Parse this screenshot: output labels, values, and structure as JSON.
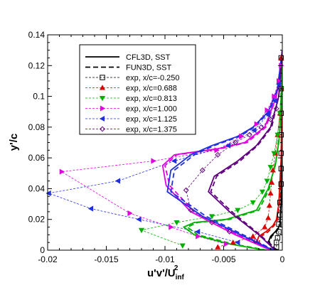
{
  "chart_data": {
    "type": "line",
    "xlim": [
      -0.02,
      0
    ],
    "ylim": [
      0,
      0.14
    ],
    "xticks": [
      -0.02,
      -0.015,
      -0.01,
      -0.005,
      0
    ],
    "xtick_labels": [
      "-0.02",
      "-0.015",
      "-0.01",
      "-0.005",
      "0"
    ],
    "yticks": [
      0,
      0.02,
      0.04,
      0.06,
      0.08,
      0.1,
      0.12,
      0.14
    ],
    "ytick_labels": [
      "0",
      "0.02",
      "0.04",
      "0.06",
      "0.08",
      "0.1",
      "0.12",
      "0.14"
    ],
    "xlabel": "u'v'/U",
    "xlabel_sub": "inf",
    "xlabel_sup": "2",
    "ylabel": "y'/c",
    "legend_position": "upper-left",
    "series": [
      {
        "name": "CFL3D, SST",
        "style": "solid",
        "color": "#000000",
        "group": "cfd",
        "x": [
          -0.0005,
          -0.0009,
          -0.0012,
          -0.001,
          -0.0006,
          -0.0002,
          -0.0001,
          0
        ],
        "y": [
          0,
          0.002,
          0.005,
          0.009,
          0.012,
          0.016,
          0.03,
          0.13
        ]
      },
      {
        "name": "FUN3D, SST",
        "style": "dashed",
        "color": "#000000",
        "group": "cfd",
        "x": [
          -0.0004,
          -0.0008,
          -0.0011,
          -0.0009,
          -0.0005,
          -0.0002,
          -0.0001,
          0
        ],
        "y": [
          0,
          0.002,
          0.005,
          0.009,
          0.012,
          0.016,
          0.03,
          0.13
        ]
      },
      {
        "name": "exp, x/c=-0.250",
        "style": "dotted",
        "color": "#000000",
        "marker": "square",
        "group": "exp",
        "x": [
          -0.0005,
          -0.0005,
          -0.0004,
          -0.0003,
          -0.0003,
          -0.0002,
          -0.0002,
          -0.0001,
          -0.0001,
          -0.0001,
          -0.0001,
          -0.0001,
          -0.0001,
          -0.0001
        ],
        "y": [
          0.002,
          0.005,
          0.008,
          0.012,
          0.017,
          0.023,
          0.031,
          0.043,
          0.053,
          0.063,
          0.075,
          0.089,
          0.105,
          0.125
        ]
      },
      {
        "name": "exp, x/c=0.688",
        "style": "dotted",
        "color": "#e00000",
        "marker": "triangle-up",
        "group": "exp",
        "x": [
          -0.0055,
          -0.0042,
          -0.0025,
          -0.0015,
          -0.0012,
          -0.0011,
          -0.001,
          -0.0009,
          -0.0008,
          -0.0006,
          -0.0004,
          -0.0002,
          -0.0001,
          -0.0001
        ],
        "y": [
          0.002,
          0.005,
          0.009,
          0.015,
          0.021,
          0.029,
          0.037,
          0.044,
          0.052,
          0.063,
          0.075,
          0.089,
          0.105,
          0.125
        ]
      },
      {
        "name": "exp, x/c=0.813",
        "style": "dotted",
        "color": "#00b000",
        "marker": "triangle-down",
        "group": "exp",
        "x": [
          -0.0085,
          -0.012,
          -0.009,
          -0.006,
          -0.0038,
          -0.0025,
          -0.0017,
          -0.0013,
          -0.001,
          -0.0007,
          -0.0004,
          -0.0002,
          -0.0001
        ],
        "y": [
          0.003,
          0.013,
          0.018,
          0.022,
          0.026,
          0.031,
          0.038,
          0.045,
          0.054,
          0.063,
          0.075,
          0.089,
          0.105
        ]
      },
      {
        "name": "exp, x/c=1.000",
        "style": "dotted",
        "color": "#e000e0",
        "marker": "triangle-right",
        "group": "exp",
        "x": [
          -0.0048,
          -0.0072,
          -0.0095,
          -0.013,
          -0.0188,
          -0.011,
          -0.0056,
          -0.0035,
          -0.0022,
          -0.0013,
          -0.0007,
          -0.0003,
          -0.0001
        ],
        "y": [
          0.004,
          0.009,
          0.015,
          0.024,
          0.051,
          0.058,
          0.065,
          0.074,
          0.082,
          0.091,
          0.1,
          0.11,
          0.12
        ]
      },
      {
        "name": "exp, x/c=1.125",
        "style": "dotted",
        "color": "#2030e0",
        "marker": "triangle-left",
        "group": "exp",
        "x": [
          -0.0038,
          -0.0072,
          -0.0122,
          -0.0163,
          -0.0199,
          -0.014,
          -0.0092,
          -0.0046,
          -0.0024,
          -0.0012,
          -0.0006,
          -0.0003
        ],
        "y": [
          0.005,
          0.012,
          0.02,
          0.027,
          0.037,
          0.045,
          0.058,
          0.068,
          0.078,
          0.088,
          0.097,
          0.108
        ]
      },
      {
        "name": "exp, x/c=1.375",
        "style": "dotted",
        "color": "#600080",
        "marker": "diamond",
        "group": "exp",
        "x": [
          -0.0023,
          -0.0045,
          -0.006,
          -0.0078,
          -0.0082,
          -0.0068,
          -0.0055,
          -0.004,
          -0.0028,
          -0.0018,
          -0.001,
          -0.0005,
          -0.0002
        ],
        "y": [
          0.006,
          0.012,
          0.018,
          0.026,
          0.039,
          0.052,
          0.062,
          0.07,
          0.075,
          0.08,
          0.085,
          0.092,
          0.105
        ]
      },
      {
        "name": "",
        "style": "solid",
        "color": "#e00000",
        "group": "cfd",
        "x": [
          -0.0007,
          -0.0016,
          -0.0022,
          -0.002,
          -0.0014,
          -0.0008,
          -0.0005,
          -0.0003,
          -0.0002,
          -0.0001,
          0
        ],
        "y": [
          0,
          0.002,
          0.005,
          0.009,
          0.012,
          0.016,
          0.02,
          0.03,
          0.045,
          0.06,
          0.13
        ]
      },
      {
        "name": "",
        "style": "dashed",
        "color": "#e00000",
        "group": "cfd",
        "x": [
          -0.0006,
          -0.0014,
          -0.002,
          -0.0018,
          -0.0012,
          -0.0007,
          -0.0004,
          -0.0002,
          -0.0001,
          0
        ],
        "y": [
          0,
          0.002,
          0.005,
          0.009,
          0.012,
          0.016,
          0.02,
          0.035,
          0.06,
          0.13
        ]
      },
      {
        "name": "",
        "style": "solid",
        "color": "#00b000",
        "group": "cfd",
        "x": [
          -0.0015,
          -0.0045,
          -0.0075,
          -0.0084,
          -0.0075,
          -0.0048,
          -0.0022,
          -0.0012,
          -0.0006,
          -0.0003,
          -0.0001,
          0
        ],
        "y": [
          0,
          0.004,
          0.01,
          0.015,
          0.018,
          0.02,
          0.026,
          0.04,
          0.055,
          0.07,
          0.09,
          0.13
        ]
      },
      {
        "name": "",
        "style": "dashed",
        "color": "#00b000",
        "group": "cfd",
        "x": [
          -0.0013,
          -0.0042,
          -0.0072,
          -0.0081,
          -0.0072,
          -0.0045,
          -0.002,
          -0.0011,
          -0.0005,
          -0.0002,
          0
        ],
        "y": [
          0,
          0.004,
          0.01,
          0.015,
          0.018,
          0.02,
          0.026,
          0.04,
          0.06,
          0.08,
          0.13
        ]
      },
      {
        "name": "",
        "style": "solid",
        "color": "#e000e0",
        "group": "cfd",
        "x": [
          -0.001,
          -0.004,
          -0.0078,
          -0.0099,
          -0.0102,
          -0.0092,
          -0.0055,
          -0.0032,
          -0.0015,
          -0.0005,
          0
        ],
        "y": [
          0,
          0.01,
          0.025,
          0.042,
          0.055,
          0.062,
          0.066,
          0.07,
          0.08,
          0.1,
          0.13
        ]
      },
      {
        "name": "",
        "style": "dashed",
        "color": "#e000e0",
        "group": "cfd",
        "x": [
          -0.0009,
          -0.0038,
          -0.0075,
          -0.0096,
          -0.01,
          -0.009,
          -0.0053,
          -0.003,
          -0.0014,
          -0.0005,
          0
        ],
        "y": [
          0,
          0.01,
          0.025,
          0.042,
          0.055,
          0.062,
          0.066,
          0.07,
          0.08,
          0.1,
          0.13
        ]
      },
      {
        "name": "",
        "style": "solid",
        "color": "#2030e0",
        "group": "cfd",
        "x": [
          -0.0008,
          -0.003,
          -0.0068,
          -0.0098,
          -0.0095,
          -0.0078,
          -0.006,
          -0.0038,
          -0.0025,
          -0.0012,
          -0.0004,
          0
        ],
        "y": [
          0,
          0.008,
          0.022,
          0.038,
          0.052,
          0.062,
          0.068,
          0.074,
          0.08,
          0.09,
          0.105,
          0.13
        ]
      },
      {
        "name": "",
        "style": "dashed",
        "color": "#2030e0",
        "group": "cfd",
        "x": [
          -0.0007,
          -0.0028,
          -0.0065,
          -0.0095,
          -0.0092,
          -0.0075,
          -0.0058,
          -0.0036,
          -0.0024,
          -0.0011,
          -0.0004,
          0
        ],
        "y": [
          0,
          0.008,
          0.022,
          0.038,
          0.052,
          0.062,
          0.068,
          0.074,
          0.08,
          0.09,
          0.105,
          0.13
        ]
      },
      {
        "name": "",
        "style": "solid",
        "color": "#600080",
        "group": "cfd",
        "x": [
          -0.0006,
          -0.002,
          -0.0045,
          -0.0063,
          -0.0058,
          -0.0038,
          -0.0022,
          -0.001,
          -0.0003,
          0
        ],
        "y": [
          0,
          0.01,
          0.025,
          0.038,
          0.048,
          0.058,
          0.068,
          0.08,
          0.1,
          0.13
        ]
      },
      {
        "name": "",
        "style": "dashed",
        "color": "#600080",
        "group": "cfd",
        "x": [
          -0.0005,
          -0.0019,
          -0.0043,
          -0.0061,
          -0.0056,
          -0.0036,
          -0.0021,
          -0.0009,
          -0.0003,
          0
        ],
        "y": [
          0,
          0.01,
          0.025,
          0.038,
          0.048,
          0.058,
          0.068,
          0.08,
          0.1,
          0.13
        ]
      }
    ]
  }
}
